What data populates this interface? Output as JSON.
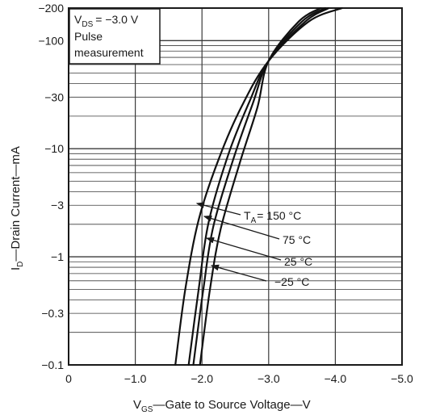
{
  "chart_data": {
    "type": "line",
    "xlabel": {
      "symbol": "V",
      "sub": "GS",
      "text": "—Gate to Source Voltage—V"
    },
    "ylabel": {
      "symbol": "I",
      "sub": "D",
      "text": "—Drain Current—mA"
    },
    "xlim": [
      0,
      -5.0
    ],
    "ylim": [
      0.1,
      200
    ],
    "yscale": "log",
    "grid": true,
    "x_ticks": [
      {
        "value": 0,
        "label": "0"
      },
      {
        "value": -1.0,
        "label": "−1.0"
      },
      {
        "value": -2.0,
        "label": "−2.0"
      },
      {
        "value": -3.0,
        "label": "−3.0"
      },
      {
        "value": -4.0,
        "label": "−4.0"
      },
      {
        "value": -5.0,
        "label": "−5.0"
      }
    ],
    "y_ticks": [
      {
        "value": 200,
        "label": "−200"
      },
      {
        "value": 100,
        "label": "−100"
      },
      {
        "value": 30,
        "label": "−30"
      },
      {
        "value": 10,
        "label": "−10"
      },
      {
        "value": 3,
        "label": "−3"
      },
      {
        "value": 1,
        "label": "−1"
      },
      {
        "value": 0.3,
        "label": "−0.3"
      },
      {
        "value": 0.1,
        "label": "−0.1"
      }
    ],
    "condition_box": {
      "line1_symbol": "V",
      "line1_sub": "DS",
      "line1_value": "= −3.0 V",
      "line2": "Pulse",
      "line3": "measurement"
    },
    "series": [
      {
        "name_symbol": "T",
        "name_sub": "A",
        "name": "= 150 °C",
        "points": [
          [
            -1.6,
            0.1
          ],
          [
            -1.75,
            0.5
          ],
          [
            -1.95,
            2.2
          ],
          [
            -2.25,
            8
          ],
          [
            -2.6,
            25
          ],
          [
            -3.0,
            65
          ],
          [
            -3.6,
            150
          ],
          [
            -4.1,
            200
          ]
        ]
      },
      {
        "name": "75 °C",
        "points": [
          [
            -1.8,
            0.1
          ],
          [
            -1.95,
            0.5
          ],
          [
            -2.1,
            2.1
          ],
          [
            -2.4,
            9
          ],
          [
            -2.72,
            28
          ],
          [
            -3.0,
            65
          ],
          [
            -3.55,
            150
          ],
          [
            -3.9,
            200
          ]
        ]
      },
      {
        "name": "25 °C",
        "points": [
          [
            -1.87,
            0.1
          ],
          [
            -2.02,
            0.5
          ],
          [
            -2.17,
            1.9
          ],
          [
            -2.47,
            8
          ],
          [
            -2.76,
            26
          ],
          [
            -3.0,
            65
          ],
          [
            -3.5,
            150
          ],
          [
            -3.85,
            200
          ]
        ]
      },
      {
        "name": "−25 °C",
        "points": [
          [
            -1.97,
            0.1
          ],
          [
            -2.12,
            0.5
          ],
          [
            -2.28,
            1.8
          ],
          [
            -2.57,
            7.5
          ],
          [
            -2.83,
            24
          ],
          [
            -3.0,
            65
          ],
          [
            -3.45,
            150
          ],
          [
            -3.78,
            200
          ]
        ]
      }
    ]
  }
}
